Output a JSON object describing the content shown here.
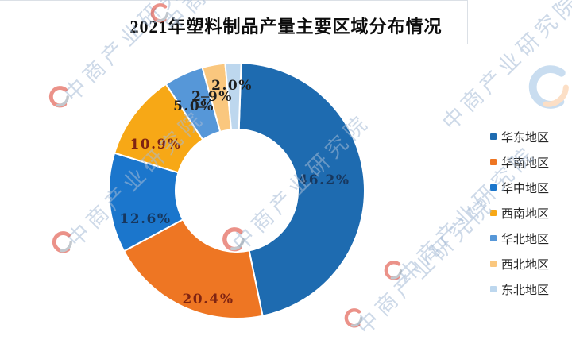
{
  "title": "2021年塑料制品产量主要区域分布情况",
  "chart_data": {
    "type": "pie",
    "subtype": "donut",
    "title": "2021年塑料制品产量主要区域分布情况",
    "start_angle": "12-oclock",
    "direction": "clockwise",
    "inner_radius_ratio": 0.48,
    "legend_position": "right",
    "categories": [
      "华东地区",
      "华南地区",
      "华中地区",
      "西南地区",
      "华北地区",
      "西北地区",
      "东北地区"
    ],
    "values": [
      46.2,
      20.4,
      12.6,
      10.9,
      5.0,
      2.9,
      2.0
    ],
    "labels": [
      "46.2%",
      "20.4%",
      "12.6%",
      "10.9%",
      "5.0%",
      "2.9%",
      "2.0%"
    ],
    "colors": [
      "#1E6BB0",
      "#EE7623",
      "#1B76CC",
      "#F7A816",
      "#5697D8",
      "#FAC77E",
      "#BDD7EE"
    ],
    "label_colors": [
      "#17375E",
      "#7F2412",
      "#17375E",
      "#7F2412",
      "#1F1F1F",
      "#1F1F1F",
      "#1F1F1F"
    ]
  },
  "watermark": {
    "text": "中商产业研究院",
    "fragment": "研究院",
    "color": "#A6BBD6"
  }
}
